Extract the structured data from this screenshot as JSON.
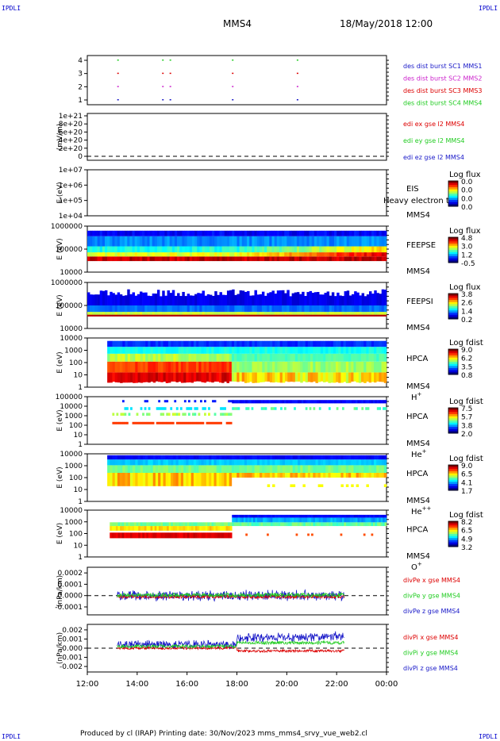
{
  "corner_label": "IPDLI",
  "header": {
    "spacecraft": "MMS4",
    "datetime": "18/May/2018 12:00"
  },
  "footer": {
    "text": "Produced by cl (IRAP)   Printing date: 30/Nov/2023   mms_mms4_srvy_vue_web2.cl"
  },
  "colors": {
    "blue": "#1818c8",
    "magenta": "#cc22cc",
    "red": "#dd0000",
    "green": "#22cc22",
    "axis": "#000000"
  },
  "chart_data": {
    "type": "heatmap",
    "x": {
      "ticks": [
        "12:00",
        "14:00",
        "16:00",
        "18:00",
        "20:00",
        "22:00",
        "00:00"
      ],
      "range": [
        "12:00",
        "00:00"
      ]
    },
    "panels": [
      {
        "id": "burst",
        "type": "scatter",
        "yticks": [
          "1",
          "2",
          "3",
          "4"
        ],
        "ylim": [
          0.5,
          4.5
        ],
        "legend": [
          {
            "text": "des dist burst SC1 MMS1",
            "color": "#1818c8"
          },
          {
            "text": "des dist burst SC2 MMS2",
            "color": "#cc22cc"
          },
          {
            "text": "des dist burst SC3 MMS3",
            "color": "#dd0000"
          },
          {
            "text": "des dist burst SC4 MMS4",
            "color": "#22cc22"
          }
        ],
        "points": [
          {
            "t": 13.2,
            "sc": 4
          },
          {
            "t": 13.2,
            "sc": 3
          },
          {
            "t": 13.2,
            "sc": 2
          },
          {
            "t": 13.2,
            "sc": 1
          },
          {
            "t": 15.0,
            "sc": 4
          },
          {
            "t": 15.0,
            "sc": 3
          },
          {
            "t": 15.0,
            "sc": 2
          },
          {
            "t": 15.0,
            "sc": 1
          },
          {
            "t": 15.3,
            "sc": 4
          },
          {
            "t": 15.3,
            "sc": 3
          },
          {
            "t": 15.3,
            "sc": 2
          },
          {
            "t": 15.3,
            "sc": 1
          },
          {
            "t": 17.8,
            "sc": 4
          },
          {
            "t": 17.8,
            "sc": 3
          },
          {
            "t": 17.8,
            "sc": 2
          },
          {
            "t": 17.8,
            "sc": 1
          },
          {
            "t": 20.4,
            "sc": 4
          },
          {
            "t": 20.4,
            "sc": 3
          },
          {
            "t": 20.4,
            "sc": 2
          },
          {
            "t": 20.4,
            "sc": 1
          }
        ]
      },
      {
        "id": "edi",
        "type": "line",
        "ylabel": "(mV/m)",
        "yticks": [
          "0",
          "2e+20",
          "4e+20",
          "6e+20",
          "8e+20",
          "1e+21"
        ],
        "legend": [
          {
            "text": "edi ex gse l2 MMS4",
            "color": "#dd0000"
          },
          {
            "text": "edi ey gse l2 MMS4",
            "color": "#22cc22"
          },
          {
            "text": "edi ez gse l2 MMS4",
            "color": "#1818c8"
          }
        ]
      },
      {
        "id": "eis",
        "type": "heatmap",
        "ylabel": "E (eV)",
        "scale": "log",
        "yticks": [
          "1e+04",
          "1e+05",
          "1e+06",
          "1e+07"
        ],
        "instrument": [
          "EIS",
          "MMS4"
        ],
        "overlay_text": "Heavy electron t",
        "cbar_title": "Log flux",
        "cbar_ticks": [
          "0.0",
          "0.0",
          "0.0",
          "0.0"
        ]
      },
      {
        "id": "feepse",
        "type": "heatmap",
        "ylabel": "E (eV)",
        "scale": "log",
        "yticks": [
          "10000",
          "100000",
          "1000000"
        ],
        "instrument": [
          "FEEPSE",
          "MMS4"
        ],
        "cbar_title": "Log flux",
        "cbar_ticks": [
          "4.8",
          "3.0",
          "1.2",
          "-0.5"
        ]
      },
      {
        "id": "feepsi",
        "type": "heatmap",
        "ylabel": "E (eV)",
        "scale": "log",
        "yticks": [
          "10000",
          "100000",
          "1000000"
        ],
        "instrument": [
          "FEEPSI",
          "MMS4"
        ],
        "cbar_title": "Log flux",
        "cbar_ticks": [
          "3.8",
          "2.6",
          "1.4",
          "0.2"
        ]
      },
      {
        "id": "hpca_h",
        "type": "heatmap",
        "ylabel": "E (eV)",
        "scale": "log",
        "yticks": [
          "1",
          "10",
          "100",
          "1000",
          "10000"
        ],
        "instrument": [
          "HPCA",
          "MMS4"
        ],
        "species": "H",
        "charge": "+",
        "cbar_title": "Log fdist",
        "cbar_ticks": [
          "9.0",
          "6.2",
          "3.5",
          "0.8"
        ]
      },
      {
        "id": "hpca_he",
        "type": "heatmap",
        "ylabel": "E (eV)",
        "scale": "log",
        "yticks": [
          "1",
          "10",
          "100",
          "1000",
          "10000",
          "100000"
        ],
        "instrument": [
          "HPCA",
          "MMS4"
        ],
        "species": "He",
        "charge": "+",
        "cbar_title": "Log fdist",
        "cbar_ticks": [
          "7.5",
          "5.7",
          "3.8",
          "2.0"
        ]
      },
      {
        "id": "hpca_hepp",
        "type": "heatmap",
        "ylabel": "E (eV)",
        "scale": "log",
        "yticks": [
          "1",
          "10",
          "100",
          "1000",
          "10000"
        ],
        "instrument": [
          "HPCA",
          "MMS4"
        ],
        "species": "He",
        "charge": "++",
        "cbar_title": "Log fdist",
        "cbar_ticks": [
          "9.0",
          "6.5",
          "4.1",
          "1.7"
        ]
      },
      {
        "id": "hpca_o",
        "type": "heatmap",
        "ylabel": "E (eV)",
        "scale": "log",
        "yticks": [
          "1",
          "10",
          "100",
          "1000",
          "10000"
        ],
        "instrument": [
          "HPCA",
          "MMS4"
        ],
        "species": "O",
        "charge": "+",
        "cbar_title": "Log fdist",
        "cbar_ticks": [
          "8.2",
          "6.5",
          "4.9",
          "3.2"
        ]
      },
      {
        "id": "divpe",
        "type": "line",
        "ylabel": "(nPa/km)",
        "yticks": [
          "-0.0001",
          "0.0000",
          "0.0001",
          "0.0002"
        ],
        "ylim": [
          -0.00017,
          0.00025
        ],
        "legend": [
          {
            "text": "divPe x gse MMS4",
            "color": "#dd0000"
          },
          {
            "text": "divPe y gse MMS4",
            "color": "#22cc22"
          },
          {
            "text": "divPe z gse MMS4",
            "color": "#1818c8"
          }
        ],
        "t_range": [
          13.2,
          22.3
        ]
      },
      {
        "id": "divpi",
        "type": "line",
        "ylabel": "(nPa/km)",
        "yticks": [
          "-0.002",
          "-0.001",
          "0.000",
          "0.001",
          "0.002"
        ],
        "ylim": [
          -0.0026,
          0.0026
        ],
        "legend": [
          {
            "text": "divPi x gse MMS4",
            "color": "#dd0000"
          },
          {
            "text": "divPi y gse MMS4",
            "color": "#22cc22"
          },
          {
            "text": "divPi z gse MMS4",
            "color": "#1818c8"
          }
        ],
        "t_range": [
          13.2,
          22.3
        ]
      }
    ]
  }
}
